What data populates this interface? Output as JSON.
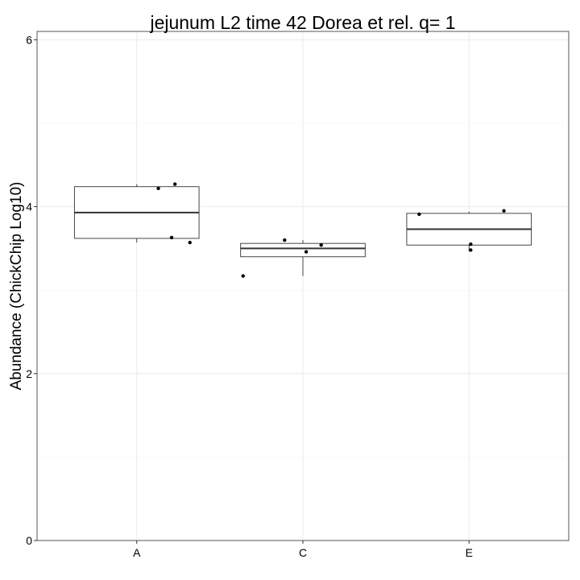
{
  "chart_data": {
    "type": "box",
    "title": "jejunum L2 time 42 Dorea et rel. q= 1",
    "xlabel": "",
    "ylabel": "Abundance (ChickChip Log10)",
    "ylim": [
      0,
      6.1
    ],
    "yticks": [
      0,
      2,
      4,
      6
    ],
    "grid": true,
    "categories": [
      "A",
      "C",
      "E"
    ],
    "boxes": [
      {
        "category": "A",
        "whisker_low": 3.57,
        "q1": 3.62,
        "median": 3.93,
        "q3": 4.24,
        "whisker_high": 4.27
      },
      {
        "category": "C",
        "whisker_low": 3.17,
        "q1": 3.4,
        "median": 3.5,
        "q3": 3.56,
        "whisker_high": 3.6
      },
      {
        "category": "E",
        "whisker_low": 3.47,
        "q1": 3.54,
        "median": 3.73,
        "q3": 3.92,
        "whisker_high": 3.94
      }
    ],
    "points": [
      {
        "category": "A",
        "jitter": 0.13,
        "y": 4.22
      },
      {
        "category": "A",
        "jitter": 0.23,
        "y": 4.27
      },
      {
        "category": "A",
        "jitter": 0.21,
        "y": 3.63
      },
      {
        "category": "A",
        "jitter": 0.32,
        "y": 3.57
      },
      {
        "category": "C",
        "jitter": -0.36,
        "y": 3.17
      },
      {
        "category": "C",
        "jitter": -0.11,
        "y": 3.6
      },
      {
        "category": "C",
        "jitter": 0.02,
        "y": 3.46
      },
      {
        "category": "C",
        "jitter": 0.11,
        "y": 3.54
      },
      {
        "category": "E",
        "jitter": -0.3,
        "y": 3.91
      },
      {
        "category": "E",
        "jitter": 0.21,
        "y": 3.95
      },
      {
        "category": "E",
        "jitter": 0.01,
        "y": 3.55
      },
      {
        "category": "E",
        "jitter": 0.01,
        "y": 3.48
      }
    ]
  }
}
